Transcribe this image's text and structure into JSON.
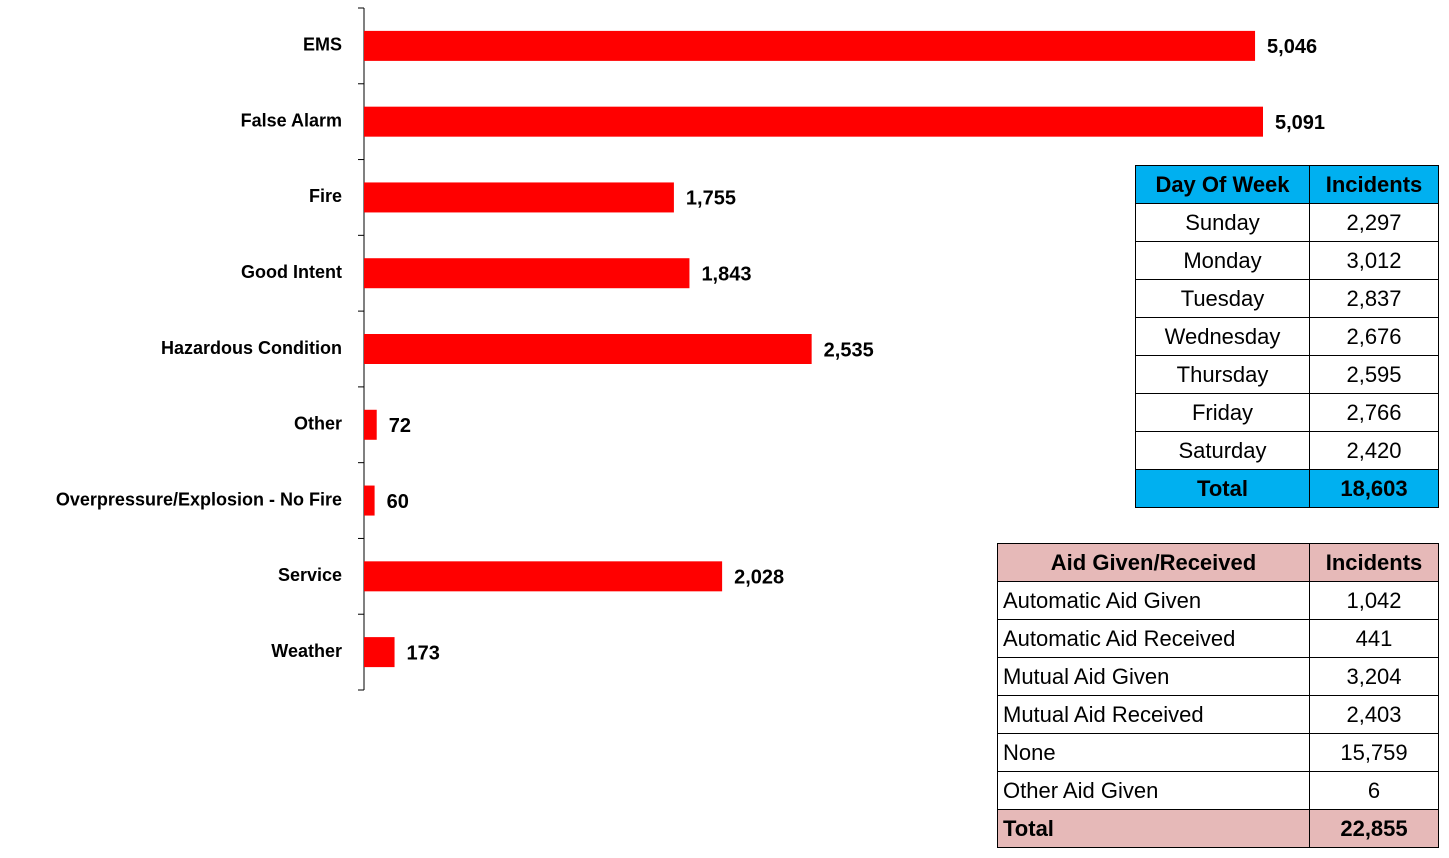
{
  "chart_data": {
    "type": "bar",
    "orientation": "horizontal",
    "categories": [
      "EMS",
      "False Alarm",
      "Fire",
      "Good Intent",
      "Hazardous Condition",
      "Other",
      "Overpressure/Explosion - No Fire",
      "Service",
      "Weather"
    ],
    "values": [
      5046,
      5091,
      1755,
      1843,
      2535,
      72,
      60,
      2028,
      173
    ],
    "value_labels": [
      "5,046",
      "5,091",
      "1,755",
      "1,843",
      "2,535",
      "72",
      "60",
      "2,028",
      "173"
    ],
    "color": "#ff0000"
  },
  "tables": [
    {
      "header": [
        "Day Of Week",
        "Incidents"
      ],
      "rows": [
        [
          "Sunday",
          "2,297"
        ],
        [
          "Monday",
          "3,012"
        ],
        [
          "Tuesday",
          "2,837"
        ],
        [
          "Wednesday",
          "2,676"
        ],
        [
          "Thursday",
          "2,595"
        ],
        [
          "Friday",
          "2,766"
        ],
        [
          "Saturday",
          "2,420"
        ]
      ],
      "total": [
        "Total",
        "18,603"
      ],
      "color": "#00b0f0"
    },
    {
      "header": [
        "Aid Given/Received",
        "Incidents"
      ],
      "rows": [
        [
          "Automatic Aid Given",
          "1,042"
        ],
        [
          "Automatic Aid Received",
          "441"
        ],
        [
          "Mutual Aid Given",
          "3,204"
        ],
        [
          "Mutual Aid Received",
          "2,403"
        ],
        [
          "None",
          "15,759"
        ],
        [
          "Other Aid Given",
          "6"
        ]
      ],
      "total": [
        "Total",
        "22,855"
      ],
      "color": "#e6b9b8"
    }
  ]
}
